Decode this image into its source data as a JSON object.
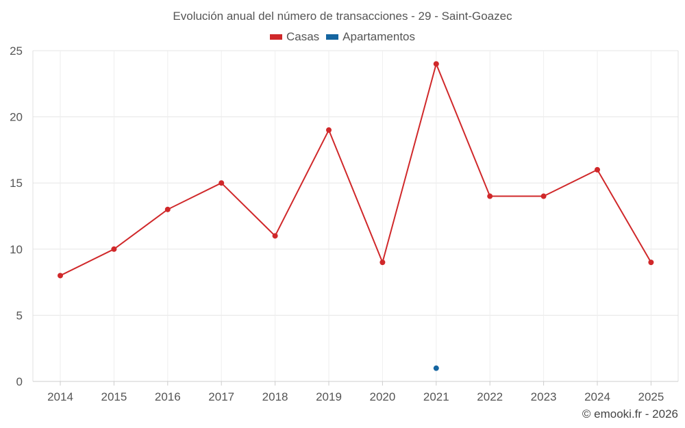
{
  "chart_data": {
    "type": "line",
    "title": "Evolución anual del número de transacciones - 29 - Saint-Goazec",
    "categories": [
      "2014",
      "2015",
      "2016",
      "2017",
      "2018",
      "2019",
      "2020",
      "2021",
      "2022",
      "2023",
      "2024",
      "2025"
    ],
    "series": [
      {
        "name": "Casas",
        "color": "#d0282a",
        "values": [
          8,
          10,
          13,
          15,
          11,
          19,
          9,
          24,
          14,
          14,
          16,
          9
        ]
      },
      {
        "name": "Apartamentos",
        "color": "#1565a0",
        "values": [
          null,
          null,
          null,
          null,
          null,
          null,
          null,
          1,
          null,
          null,
          null,
          null
        ]
      }
    ],
    "ylim": [
      0,
      25
    ],
    "yticks": [
      0,
      5,
      10,
      15,
      20,
      25
    ],
    "grid": true,
    "legend_position": "top-center"
  },
  "credit": "© emooki.fr - 2026"
}
